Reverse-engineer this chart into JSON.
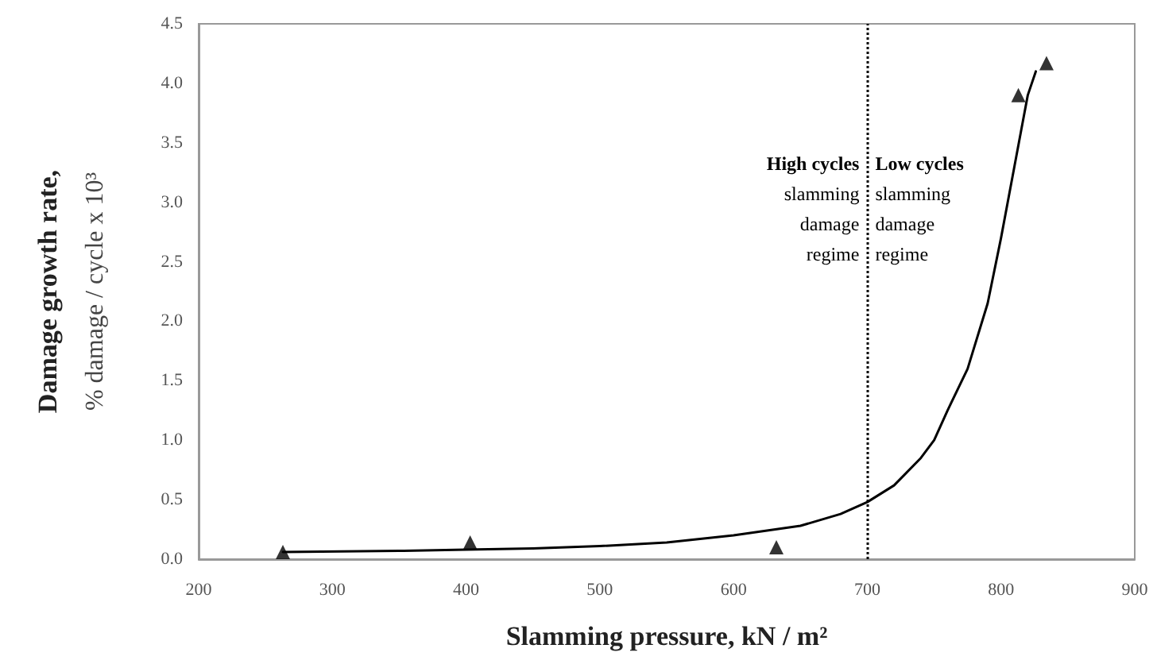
{
  "chart_data": {
    "type": "scatter",
    "xlabel": "Slamming pressure, kN / m²",
    "ylabel": "Damage growth rate,\n% damage / cycle x 10³",
    "xlim": [
      200,
      900
    ],
    "xticks": [
      200,
      300,
      400,
      500,
      600,
      700,
      800,
      900
    ],
    "ylim": [
      0,
      4.5
    ],
    "yticks": [
      {
        "value": 0,
        "label": "0.0"
      },
      0.5,
      {
        "value": 1,
        "label": "1.0"
      },
      1.5,
      {
        "value": 2,
        "label": "2.0"
      },
      2.5,
      {
        "value": 3,
        "label": "3.0"
      },
      3.5,
      {
        "value": 4,
        "label": "4.0"
      },
      4.5
    ],
    "grid": false,
    "series": [
      {
        "marker": "triangle",
        "color": "#000000",
        "x": [
          263,
          403,
          632,
          813,
          834
        ],
        "values": [
          0.06,
          0.14,
          0.1,
          3.9,
          4.17
        ]
      },
      {
        "type": "line",
        "marker": "none",
        "line_style": "solid",
        "color": "#000000",
        "x": [
          263,
          350,
          400,
          450,
          500,
          550,
          600,
          650,
          680,
          700,
          720,
          740,
          750,
          760,
          775,
          790,
          800,
          810,
          815,
          820,
          826
        ],
        "values": [
          0.06,
          0.07,
          0.08,
          0.09,
          0.11,
          0.14,
          0.2,
          0.28,
          0.38,
          0.48,
          0.62,
          0.85,
          1.0,
          1.25,
          1.6,
          2.15,
          2.7,
          3.3,
          3.6,
          3.9,
          4.1
        ]
      }
    ],
    "ref_lines": [
      {
        "axis": "x",
        "value": 700,
        "line_style": "dotted",
        "color": "#000000"
      }
    ],
    "annotations": [
      {
        "text": "High cycles\nslamming\ndamage\nregime",
        "x": 700,
        "y": 3.45
      },
      {
        "text": "Low cycles\nslamming\ndamage\nregime",
        "x": 700,
        "y": 3.45
      }
    ]
  }
}
